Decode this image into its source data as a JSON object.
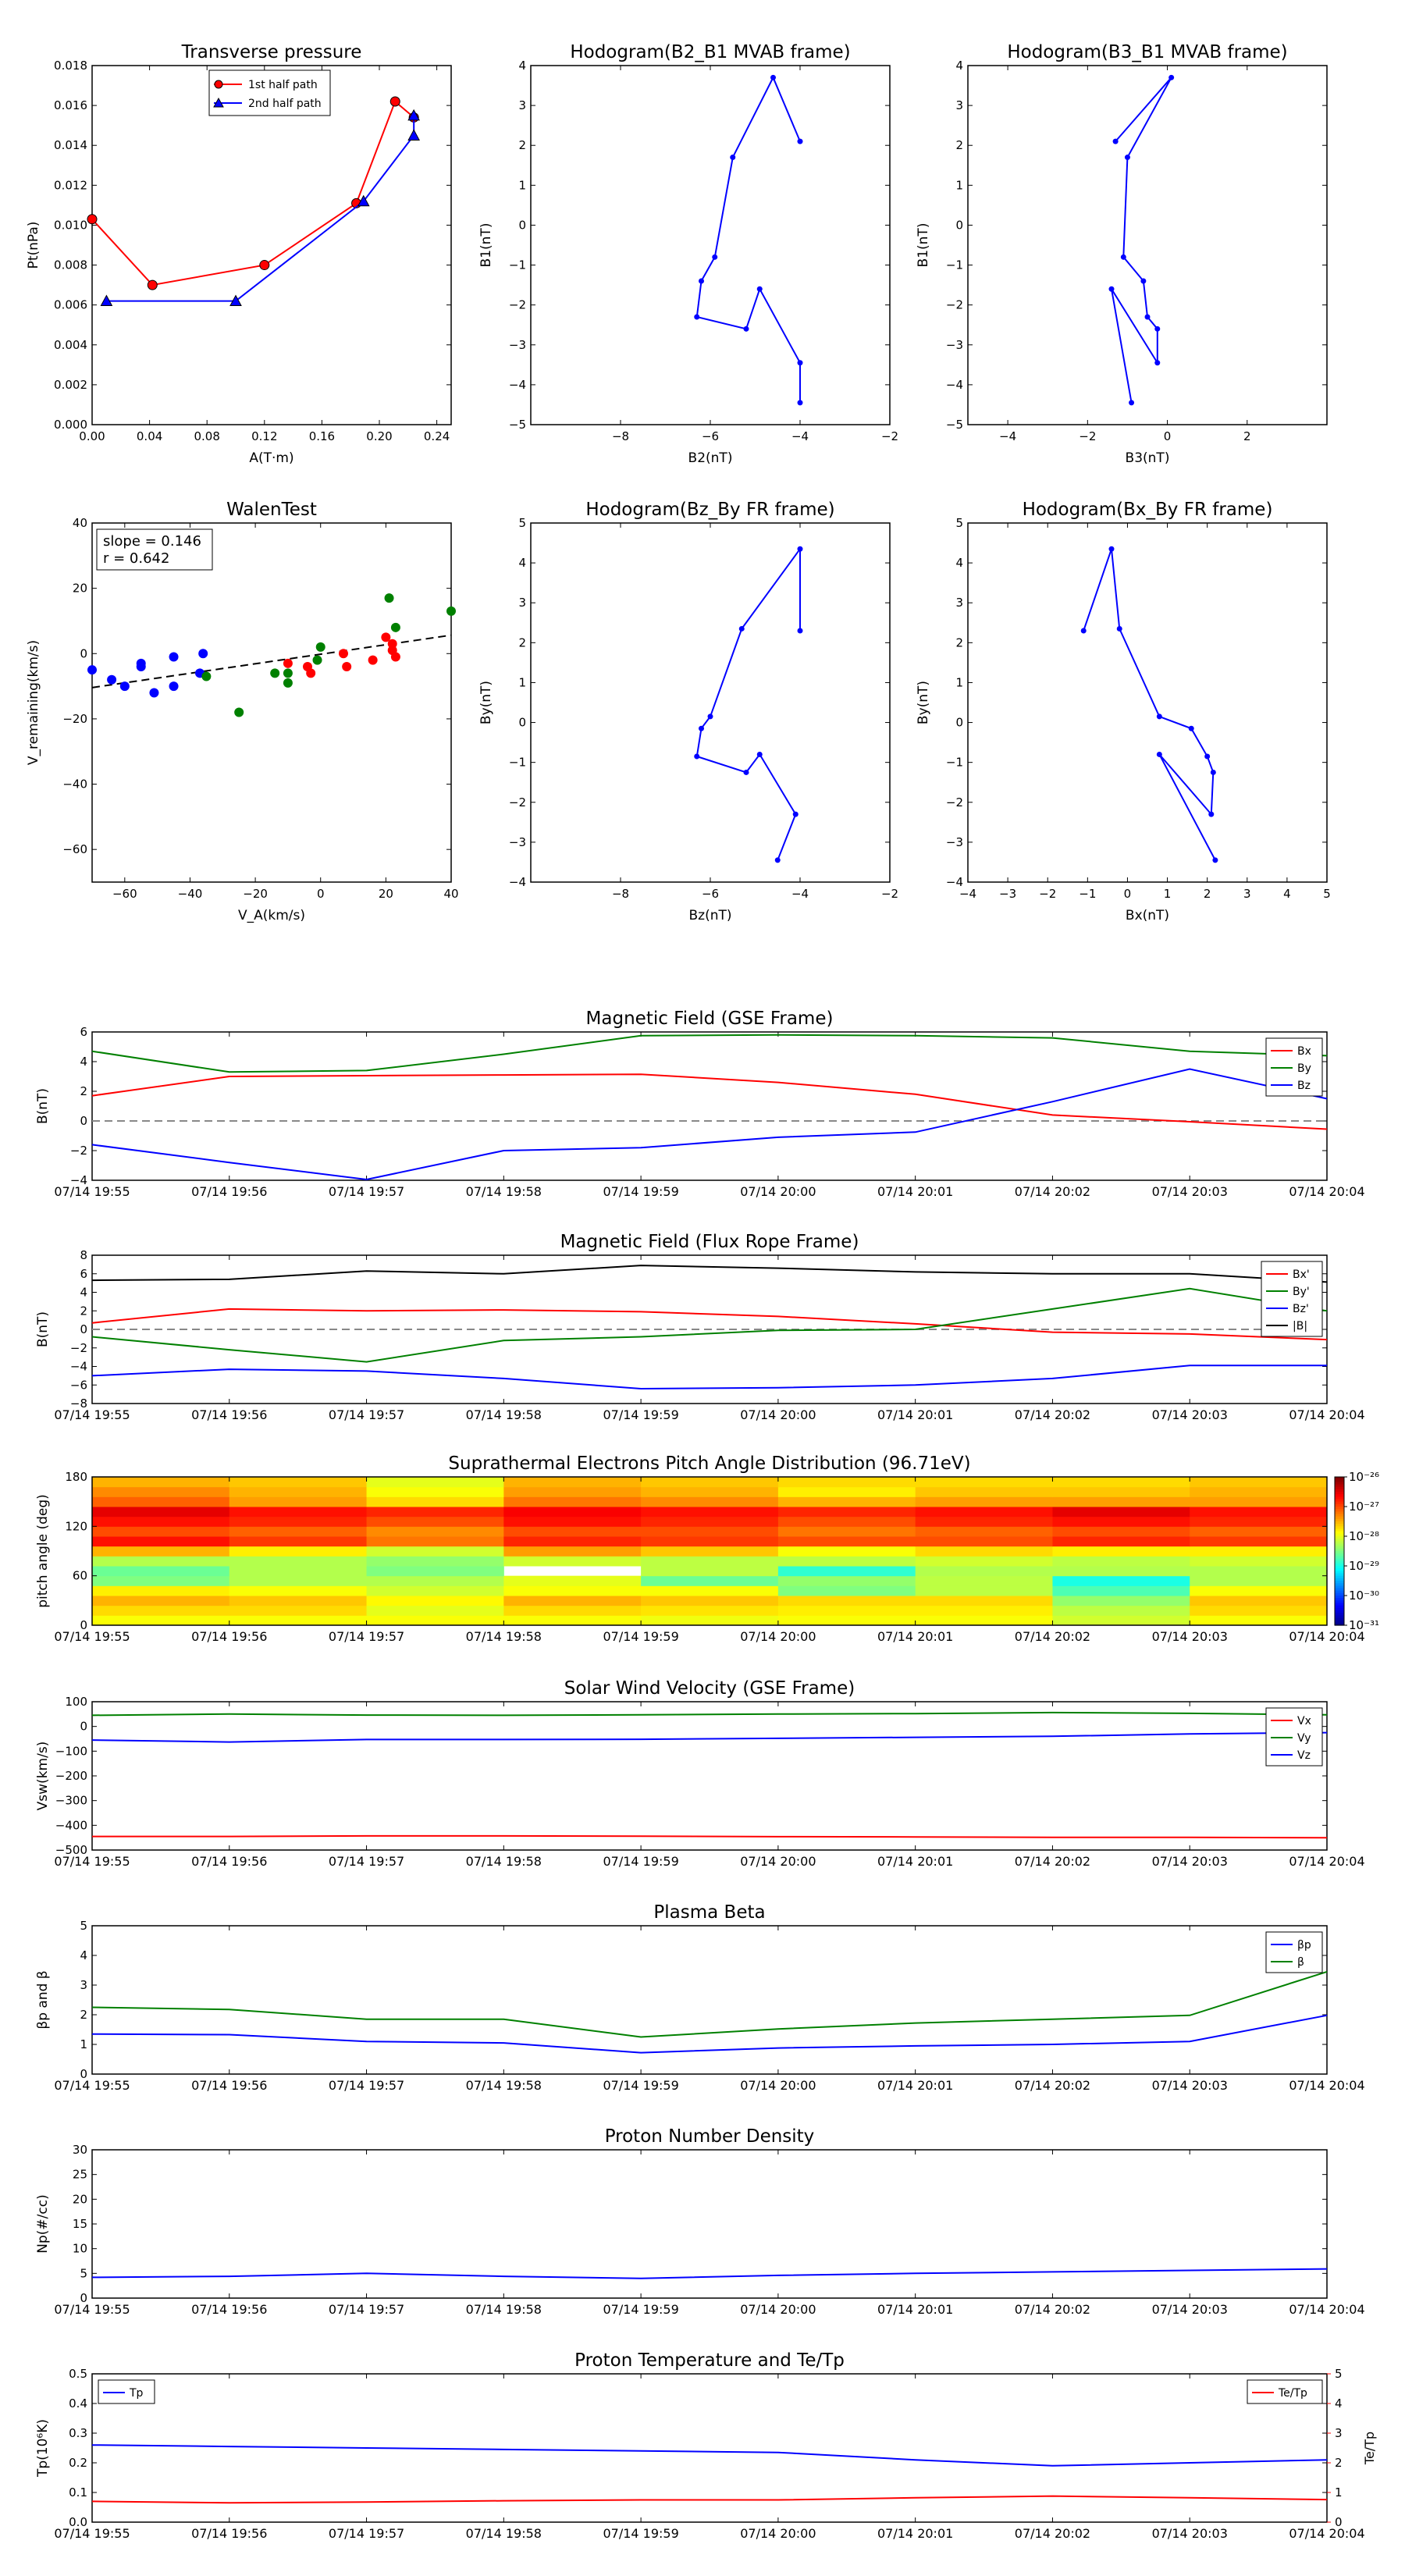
{
  "times": [
    "07/14 19:55",
    "07/14 19:56",
    "07/14 19:57",
    "07/14 19:58",
    "07/14 19:59",
    "07/14 20:00",
    "07/14 20:01",
    "07/14 20:02",
    "07/14 20:03",
    "07/14 20:04"
  ],
  "colors": {
    "red": "#ff0000",
    "green": "#008000",
    "blue": "#0000ff",
    "black": "#000000"
  },
  "charts": {
    "pt": {
      "type": "scatter",
      "title": "Transverse pressure",
      "xlabel": "A(T·m)",
      "ylabel": "Pt(nPa)",
      "xlim": [
        0,
        0.25
      ],
      "ylim": [
        0,
        0.018
      ],
      "xticks": [
        "0.00",
        "0.04",
        "0.08",
        "0.12",
        "0.16",
        "0.20",
        "0.24"
      ],
      "yticks": [
        "0.000",
        "0.002",
        "0.004",
        "0.006",
        "0.008",
        "0.010",
        "0.012",
        "0.014",
        "0.016",
        "0.018"
      ],
      "series": [
        {
          "name": "1st half path",
          "color": "red",
          "marker": "circle",
          "x": [
            0.0,
            0.042,
            0.12,
            0.184,
            0.211,
            0.224
          ],
          "y": [
            0.0103,
            0.007,
            0.008,
            0.0111,
            0.0162,
            0.0154
          ]
        },
        {
          "name": "2nd half path",
          "color": "blue",
          "marker": "triangle",
          "x": [
            0.01,
            0.1,
            0.189,
            0.224,
            0.224
          ],
          "y": [
            0.0062,
            0.0062,
            0.0112,
            0.0145,
            0.0155
          ]
        }
      ]
    },
    "hodo1": {
      "type": "line",
      "title": "Hodogram(B2_B1 MVAB frame)",
      "xlabel": "B2(nT)",
      "ylabel": "B1(nT)",
      "xlim": [
        -10,
        -2
      ],
      "ylim": [
        -5,
        4
      ],
      "xticks": [
        "−8",
        "−6",
        "−4",
        "−2"
      ],
      "yticks": [
        "−5",
        "−4",
        "−3",
        "−2",
        "−1",
        "0",
        "1",
        "2",
        "3",
        "4"
      ],
      "x": [
        -4.0,
        -4.6,
        -5.5,
        -5.9,
        -6.2,
        -6.3,
        -5.2,
        -4.9,
        -4.0,
        -4.0
      ],
      "y": [
        2.1,
        3.7,
        1.7,
        -0.8,
        -1.4,
        -2.3,
        -2.6,
        -1.6,
        -3.45,
        -4.45
      ]
    },
    "hodo2": {
      "type": "line",
      "title": "Hodogram(B3_B1 MVAB frame)",
      "xlabel": "B3(nT)",
      "ylabel": "B1(nT)",
      "xlim": [
        -5,
        4
      ],
      "ylim": [
        -5,
        4
      ],
      "xticks": [
        "−4",
        "−2",
        "0",
        "2"
      ],
      "yticks": [
        "−5",
        "−4",
        "−3",
        "−2",
        "−1",
        "0",
        "1",
        "2",
        "3",
        "4"
      ],
      "x": [
        -1.3,
        0.1,
        -1.0,
        -1.1,
        -0.6,
        -0.5,
        -0.25,
        -0.25,
        -1.4,
        -0.9
      ],
      "y": [
        2.1,
        3.7,
        1.7,
        -0.8,
        -1.4,
        -2.3,
        -2.6,
        -3.45,
        -1.6,
        -4.45
      ]
    },
    "walen": {
      "type": "scatter",
      "title": "WalenTest",
      "xlabel": "V_A(km/s)",
      "ylabel": "V_remaining(km/s)",
      "xlim": [
        -70,
        40
      ],
      "ylim": [
        -70,
        40
      ],
      "xticks": [
        "−60",
        "−40",
        "−20",
        "0",
        "20",
        "40"
      ],
      "yticks": [
        "−60",
        "−40",
        "−20",
        "0",
        "20",
        "40"
      ],
      "annotation": [
        "slope = 0.146",
        "r = 0.642"
      ],
      "fit": {
        "slope": 0.146,
        "intercept": -0.2
      },
      "series": [
        {
          "color": "blue",
          "x": [
            -70,
            -64,
            -60,
            -55,
            -55,
            -51,
            -45,
            -45,
            -37,
            -36
          ],
          "y": [
            -5,
            -8,
            -10,
            -3,
            -4,
            -12,
            -10,
            -1,
            -6,
            0
          ]
        },
        {
          "color": "green",
          "x": [
            -35,
            -25,
            -14,
            -10,
            -10,
            -1,
            0,
            21,
            23,
            40
          ],
          "y": [
            -7,
            -18,
            -6,
            -6,
            -9,
            -2,
            2,
            17,
            8,
            13
          ]
        },
        {
          "color": "red",
          "x": [
            -10,
            -4,
            -3,
            7,
            8,
            16,
            20,
            22,
            22,
            23
          ],
          "y": [
            -3,
            -4,
            -6,
            0,
            -4,
            -2,
            5,
            3,
            1,
            -1
          ]
        }
      ]
    },
    "hodo3": {
      "type": "line",
      "title": "Hodogram(Bz_By FR frame)",
      "xlabel": "Bz(nT)",
      "ylabel": "By(nT)",
      "xlim": [
        -10,
        -2
      ],
      "ylim": [
        -4,
        5
      ],
      "xticks": [
        "−8",
        "−6",
        "−4",
        "−2"
      ],
      "yticks": [
        "−4",
        "−3",
        "−2",
        "−1",
        "0",
        "1",
        "2",
        "3",
        "4",
        "5"
      ],
      "x": [
        -4.0,
        -4.0,
        -5.3,
        -6.0,
        -6.2,
        -6.3,
        -5.2,
        -4.9,
        -4.1,
        -4.5
      ],
      "y": [
        2.3,
        4.35,
        2.35,
        0.15,
        -0.15,
        -0.85,
        -1.25,
        -0.8,
        -2.3,
        -3.45
      ]
    },
    "hodo4": {
      "type": "line",
      "title": "Hodogram(Bx_By FR frame)",
      "xlabel": "Bx(nT)",
      "ylabel": "By(nT)",
      "xlim": [
        -4,
        5
      ],
      "ylim": [
        -4,
        5
      ],
      "xticks": [
        "−4",
        "−3",
        "−2",
        "−1",
        "0",
        "1",
        "2",
        "3",
        "4",
        "5"
      ],
      "yticks": [
        "−4",
        "−3",
        "−2",
        "−1",
        "0",
        "1",
        "2",
        "3",
        "4",
        "5"
      ],
      "x": [
        -1.1,
        -0.4,
        -0.2,
        0.8,
        1.6,
        2.0,
        2.15,
        2.1,
        0.8,
        2.2
      ],
      "y": [
        2.3,
        4.35,
        2.35,
        0.15,
        -0.15,
        -0.85,
        -1.25,
        -2.3,
        -0.8,
        -3.45
      ]
    },
    "bgse": {
      "type": "line",
      "title": "Magnetic Field (GSE Frame)",
      "ylabel": "B(nT)",
      "ylim": [
        -4,
        6
      ],
      "yticks": [
        "−4",
        "−2",
        "0",
        "2",
        "4",
        "6"
      ],
      "zero_line": true,
      "legend": "top-right",
      "series": [
        {
          "name": "Bx",
          "color": "red",
          "values": [
            1.7,
            3.0,
            3.05,
            3.1,
            3.15,
            2.6,
            1.8,
            0.4,
            -0.05,
            -0.55
          ]
        },
        {
          "name": "By",
          "color": "green",
          "values": [
            4.7,
            3.3,
            3.4,
            4.5,
            5.75,
            5.8,
            5.75,
            5.6,
            4.7,
            4.4
          ]
        },
        {
          "name": "Bz",
          "color": "blue",
          "values": [
            -1.6,
            -2.8,
            -3.95,
            -2.0,
            -1.8,
            -1.1,
            -0.75,
            1.3,
            3.5,
            1.5
          ]
        }
      ]
    },
    "bfr": {
      "type": "line",
      "title": "Magnetic Field (Flux Rope Frame)",
      "ylabel": "B(nT)",
      "ylim": [
        -8,
        8
      ],
      "yticks": [
        "−8",
        "−6",
        "−4",
        "−2",
        "0",
        "2",
        "4",
        "6",
        "8"
      ],
      "zero_line": true,
      "legend": "top-right",
      "series": [
        {
          "name": "Bx'",
          "color": "red",
          "values": [
            0.7,
            2.2,
            2.0,
            2.1,
            1.9,
            1.4,
            0.6,
            -0.3,
            -0.5,
            -1.1
          ]
        },
        {
          "name": "By'",
          "color": "green",
          "values": [
            -0.8,
            -2.2,
            -3.5,
            -1.2,
            -0.8,
            -0.1,
            0.0,
            2.2,
            4.4,
            2.0
          ]
        },
        {
          "name": "Bz'",
          "color": "blue",
          "values": [
            -5.0,
            -4.3,
            -4.5,
            -5.3,
            -6.4,
            -6.3,
            -6.0,
            -5.3,
            -3.9,
            -3.9
          ]
        },
        {
          "name": "|B|",
          "color": "black",
          "values": [
            5.3,
            5.4,
            6.3,
            6.0,
            6.9,
            6.6,
            6.2,
            6.0,
            6.0,
            5.1
          ]
        }
      ]
    },
    "pad": {
      "type": "heatmap",
      "title": "Suprathermal Electrons Pitch Angle Distribution (96.71eV)",
      "ylabel": "pitch angle (deg)",
      "ylim": [
        0,
        180
      ],
      "yticks": [
        "0",
        "60",
        "120",
        "180"
      ],
      "colorbar": [
        "10⁻²⁶",
        "10⁻²⁷",
        "10⁻²⁸",
        "10⁻²⁹",
        "10⁻³⁰",
        "10⁻³¹"
      ],
      "values": [
        [
          0.62,
          0.62,
          0.62,
          0.62,
          0.61,
          0.62,
          0.62,
          0.58,
          0.62
        ],
        [
          0.66,
          0.66,
          0.6,
          0.66,
          0.65,
          0.64,
          0.64,
          0.56,
          0.66
        ],
        [
          0.7,
          0.68,
          0.63,
          0.7,
          0.68,
          0.66,
          0.66,
          0.52,
          0.68
        ],
        [
          0.64,
          0.62,
          0.58,
          0.62,
          0.62,
          0.5,
          0.56,
          0.45,
          0.62
        ],
        [
          0.5,
          0.55,
          0.55,
          0.6,
          0.48,
          0.52,
          0.56,
          0.4,
          0.55
        ],
        [
          0.48,
          0.55,
          0.5,
          -1,
          0.56,
          0.42,
          0.55,
          0.55,
          0.55
        ],
        [
          0.55,
          0.55,
          0.52,
          0.58,
          0.56,
          0.56,
          0.58,
          0.56,
          0.58
        ],
        [
          0.7,
          0.64,
          0.58,
          0.72,
          0.68,
          0.62,
          0.66,
          0.64,
          0.64
        ],
        [
          0.86,
          0.82,
          0.76,
          0.84,
          0.82,
          0.8,
          0.8,
          0.84,
          0.82
        ],
        [
          0.8,
          0.78,
          0.74,
          0.8,
          0.8,
          0.76,
          0.78,
          0.8,
          0.78
        ],
        [
          0.86,
          0.84,
          0.8,
          0.86,
          0.84,
          0.8,
          0.84,
          0.86,
          0.84
        ],
        [
          0.9,
          0.86,
          0.84,
          0.88,
          0.86,
          0.84,
          0.86,
          0.9,
          0.86
        ],
        [
          0.78,
          0.72,
          0.66,
          0.76,
          0.74,
          0.7,
          0.72,
          0.72,
          0.72
        ],
        [
          0.74,
          0.7,
          0.62,
          0.72,
          0.7,
          0.64,
          0.68,
          0.68,
          0.7
        ],
        [
          0.7,
          0.68,
          0.6,
          0.7,
          0.68,
          0.66,
          0.66,
          0.66,
          0.68
        ]
      ]
    },
    "vsw": {
      "type": "line",
      "title": "Solar Wind Velocity (GSE Frame)",
      "ylabel": "Vsw(km/s)",
      "ylim": [
        -500,
        100
      ],
      "yticks": [
        "−500",
        "−400",
        "−300",
        "−200",
        "−100",
        "0",
        "100"
      ],
      "legend": "top-right",
      "series": [
        {
          "name": "Vx",
          "color": "red",
          "values": [
            -445,
            -445,
            -443,
            -443,
            -444,
            -446,
            -447,
            -449,
            -449,
            -450
          ]
        },
        {
          "name": "Vy",
          "color": "green",
          "values": [
            45,
            50,
            46,
            45,
            47,
            50,
            52,
            56,
            53,
            47
          ]
        },
        {
          "name": "Vz",
          "color": "blue",
          "values": [
            -55,
            -63,
            -53,
            -53,
            -52,
            -48,
            -44,
            -40,
            -30,
            -25
          ]
        }
      ]
    },
    "beta": {
      "type": "line",
      "title": "Plasma Beta",
      "ylabel": "βp and β",
      "ylim": [
        0,
        5
      ],
      "yticks": [
        "0",
        "1",
        "2",
        "3",
        "4",
        "5"
      ],
      "legend": "top-right",
      "series": [
        {
          "name": "βp",
          "color": "blue",
          "values": [
            1.35,
            1.33,
            1.1,
            1.05,
            0.72,
            0.88,
            0.95,
            1.0,
            1.1,
            1.98
          ]
        },
        {
          "name": "β",
          "color": "green",
          "values": [
            2.25,
            2.18,
            1.85,
            1.85,
            1.25,
            1.52,
            1.72,
            1.85,
            1.98,
            3.45
          ]
        }
      ]
    },
    "np": {
      "type": "line",
      "title": "Proton Number Density",
      "ylabel": "Np(#/cc)",
      "ylim": [
        0,
        30
      ],
      "yticks": [
        "0",
        "5",
        "10",
        "15",
        "20",
        "25",
        "30"
      ],
      "series": [
        {
          "color": "blue",
          "values": [
            4.2,
            4.4,
            5.0,
            4.4,
            4.0,
            4.6,
            5.0,
            5.3,
            5.6,
            5.9
          ]
        }
      ]
    },
    "tp": {
      "type": "line",
      "title": "Proton Temperature and Te/Tp",
      "ylabel": "Tp(10⁶K)",
      "y2label": "Te/Tp",
      "ylim": [
        0,
        0.5
      ],
      "y2lim": [
        0,
        5
      ],
      "yticks": [
        "0.0",
        "0.1",
        "0.2",
        "0.3",
        "0.4",
        "0.5"
      ],
      "y2ticks": [
        "0",
        "1",
        "2",
        "3",
        "4",
        "5"
      ],
      "series": [
        {
          "name": "Tp",
          "color": "blue",
          "axis": "left",
          "values": [
            0.26,
            0.255,
            0.25,
            0.245,
            0.24,
            0.235,
            0.21,
            0.19,
            0.2,
            0.21
          ]
        },
        {
          "name": "Te/Tp",
          "color": "red",
          "axis": "right",
          "values": [
            0.7,
            0.65,
            0.68,
            0.72,
            0.75,
            0.75,
            0.82,
            0.88,
            0.82,
            0.76
          ]
        }
      ]
    }
  }
}
